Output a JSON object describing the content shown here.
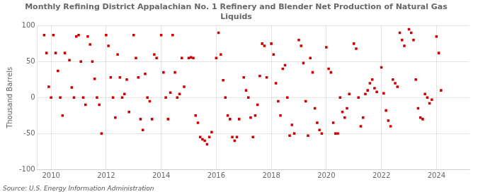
{
  "chart_data": {
    "type": "scatter",
    "title": "Monthly Refining District Appalachian No. 1 Refinery and Blender Net Production of Natural Gas\nLiquids",
    "ylabel": "Thousand Barrels",
    "source": "Source: U.S. Energy Information Administration",
    "color": "#cc0000",
    "marker": "square",
    "grid": true,
    "xlim": [
      2009.5,
      2025.2
    ],
    "xticks": [
      2010,
      2012,
      2014,
      2016,
      2018,
      2020,
      2022,
      2024
    ],
    "ylim": [
      -100,
      100
    ],
    "yticks": [
      -100,
      -50,
      0,
      50,
      100
    ],
    "x": [
      2009.75,
      2009.833,
      2009.917,
      2010.0,
      2010.083,
      2010.167,
      2010.25,
      2010.333,
      2010.417,
      2010.5,
      2010.667,
      2010.75,
      2010.833,
      2010.917,
      2011.0,
      2011.083,
      2011.167,
      2011.25,
      2011.333,
      2011.417,
      2011.5,
      2011.583,
      2011.667,
      2011.75,
      2011.833,
      2012.0,
      2012.083,
      2012.167,
      2012.25,
      2012.333,
      2012.417,
      2012.5,
      2012.583,
      2012.667,
      2012.75,
      2012.833,
      2013.0,
      2013.083,
      2013.167,
      2013.25,
      2013.333,
      2013.417,
      2013.5,
      2013.583,
      2013.667,
      2013.75,
      2013.833,
      2014.0,
      2014.083,
      2014.167,
      2014.25,
      2014.333,
      2014.417,
      2014.5,
      2014.583,
      2014.667,
      2014.75,
      2014.833,
      2015.0,
      2015.083,
      2015.167,
      2015.25,
      2015.333,
      2015.417,
      2015.5,
      2015.583,
      2015.667,
      2015.75,
      2015.833,
      2016.0,
      2016.083,
      2016.167,
      2016.25,
      2016.333,
      2016.417,
      2016.5,
      2016.583,
      2016.667,
      2016.75,
      2016.833,
      2017.0,
      2017.083,
      2017.167,
      2017.25,
      2017.333,
      2017.417,
      2017.5,
      2017.583,
      2017.667,
      2017.75,
      2017.833,
      2018.0,
      2018.083,
      2018.167,
      2018.25,
      2018.333,
      2018.417,
      2018.5,
      2018.583,
      2018.667,
      2018.75,
      2018.833,
      2019.0,
      2019.083,
      2019.167,
      2019.25,
      2019.333,
      2019.417,
      2019.5,
      2019.583,
      2019.667,
      2019.75,
      2019.833,
      2020.0,
      2020.083,
      2020.167,
      2020.25,
      2020.333,
      2020.417,
      2020.5,
      2020.583,
      2020.667,
      2020.75,
      2020.833,
      2021.0,
      2021.083,
      2021.167,
      2021.25,
      2021.333,
      2021.417,
      2021.5,
      2021.583,
      2021.667,
      2021.75,
      2021.833,
      2022.0,
      2022.083,
      2022.167,
      2022.25,
      2022.333,
      2022.417,
      2022.5,
      2022.583,
      2022.667,
      2022.75,
      2022.833,
      2023.0,
      2023.083,
      2023.167,
      2023.25,
      2023.333,
      2023.417,
      2023.5,
      2023.583,
      2023.667,
      2023.75,
      2023.833,
      2024.0,
      2024.083,
      2024.167
    ],
    "values": [
      87,
      62,
      15,
      0,
      87,
      62,
      37,
      0,
      -25,
      62,
      52,
      14,
      0,
      85,
      87,
      50,
      0,
      -10,
      85,
      74,
      50,
      26,
      0,
      -10,
      -50,
      87,
      72,
      28,
      0,
      -28,
      60,
      28,
      0,
      5,
      25,
      -20,
      87,
      55,
      28,
      -30,
      -45,
      33,
      0,
      -5,
      -30,
      60,
      55,
      87,
      35,
      0,
      -30,
      7,
      87,
      35,
      0,
      5,
      55,
      15,
      55,
      56,
      55,
      -25,
      -35,
      -55,
      -58,
      -60,
      -65,
      -55,
      -48,
      55,
      90,
      60,
      24,
      0,
      -25,
      -30,
      -55,
      -60,
      -55,
      -30,
      28,
      10,
      0,
      -28,
      -55,
      -25,
      -10,
      30,
      75,
      72,
      28,
      75,
      60,
      20,
      -5,
      -25,
      40,
      45,
      0,
      -53,
      -38,
      -50,
      80,
      72,
      48,
      -5,
      -53,
      55,
      35,
      -15,
      -35,
      -45,
      -50,
      70,
      40,
      35,
      -35,
      -50,
      -50,
      0,
      -20,
      -28,
      -15,
      5,
      75,
      68,
      0,
      -40,
      -28,
      5,
      10,
      20,
      25,
      13,
      8,
      42,
      6,
      -18,
      -32,
      -40,
      25,
      20,
      15,
      90,
      80,
      72,
      95,
      90,
      80,
      25,
      -15,
      -28,
      -30,
      5,
      0,
      -8,
      -3,
      85,
      62,
      10
    ]
  }
}
